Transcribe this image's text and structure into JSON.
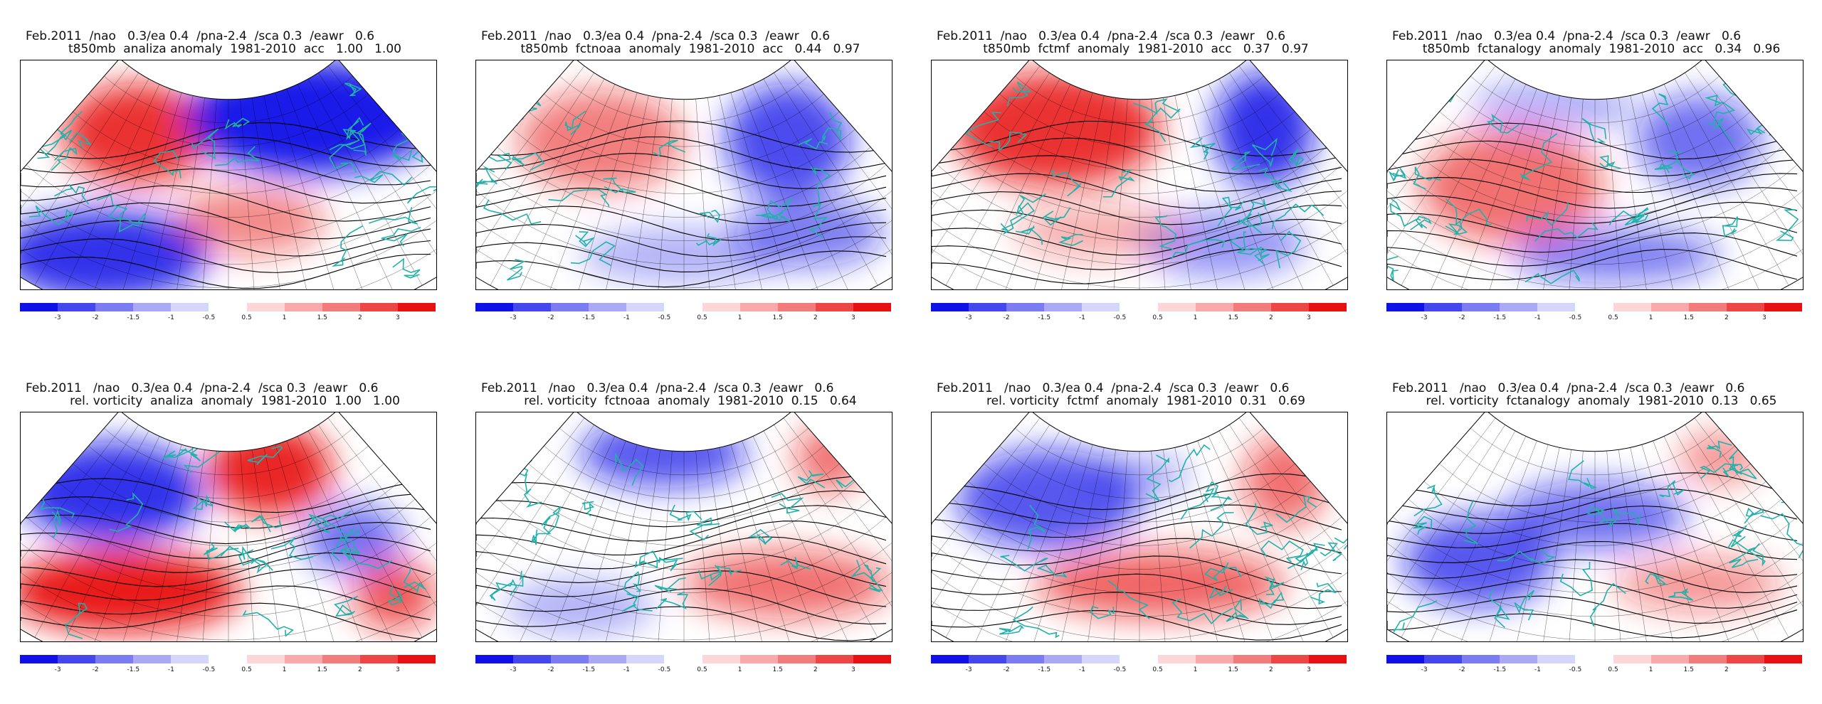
{
  "panels": [
    {
      "line1": "Feb.2011  /nao   0.3/ea 0.4  /pna-2.4  /sca 0.3  /eawr   0.6",
      "line2": "t850mb  analiza anomaly  1981-2010  acc   1.00   1.00"
    },
    {
      "line1": "Feb.2011  /nao   0.3/ea 0.4  /pna-2.4  /sca 0.3  /eawr   0.6",
      "line2": "t850mb  fctnoaa  anomaly  1981-2010  acc   0.44   0.97"
    },
    {
      "line1": "Feb.2011  /nao   0.3/ea 0.4  /pna-2.4  /sca 0.3  /eawr   0.6",
      "line2": "t850mb  fctmf  anomaly  1981-2010  acc   0.37   0.97"
    },
    {
      "line1": "Feb.2011  /nao   0.3/ea 0.4  /pna-2.4  /sca 0.3  /eawr   0.6",
      "line2": "t850mb  fctanalogy  anomaly  1981-2010  acc   0.34   0.96"
    },
    {
      "line1": "Feb.2011   /nao   0.3/ea 0.4  /pna-2.4  /sca 0.3  /eawr   0.6",
      "line2": "rel. vorticity  analiza  anomaly  1981-2010  1.00   1.00"
    },
    {
      "line1": "Feb.2011   /nao   0.3/ea 0.4  /pna-2.4  /sca 0.3  /eawr   0.6",
      "line2": "rel. vorticity  fctnoaa  anomaly  1981-2010  0.15   0.64"
    },
    {
      "line1": "Feb.2011   /nao   0.3/ea 0.4  /pna-2.4  /sca 0.3  /eawr   0.6",
      "line2": "rel. vorticity  fctmf  anomaly  1981-2010  0.31   0.69"
    },
    {
      "line1": "Feb.2011   /nao   0.3/ea 0.4  /pna-2.4  /sca 0.3  /eawr   0.6",
      "line2": "rel. vorticity  fctanalogy  anomaly  1981-2010  0.13   0.65"
    }
  ],
  "colorbar": {
    "labels": [
      "-3",
      "-2",
      "-1.5",
      "-1",
      "-0.5",
      "0.5",
      "1",
      "1.5",
      "2",
      "3"
    ],
    "colors": [
      "#1010e8",
      "#4646ee",
      "#7b7bf2",
      "#a9a9f6",
      "#d6d6fb",
      "#ffffff",
      "#fdd6d6",
      "#f9a9a9",
      "#f27b7b",
      "#ee4646",
      "#e81010"
    ]
  },
  "colors": {
    "coast": "#20b2aa",
    "contour": "#000000",
    "negative": "#1010e8",
    "positive": "#e81010"
  }
}
